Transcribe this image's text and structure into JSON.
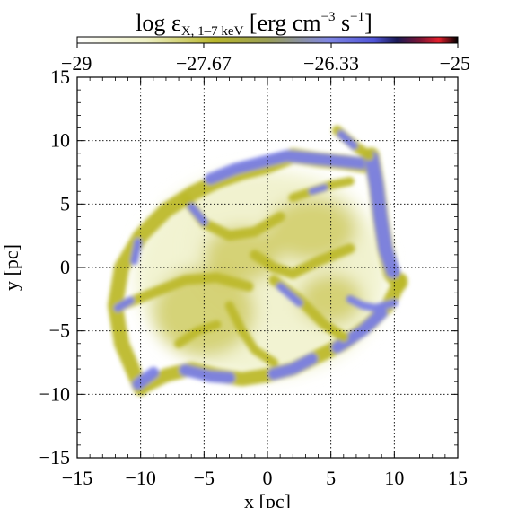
{
  "colorbar": {
    "label": "log εX, 1–7 keV [erg cm−3 s−1]",
    "label_main": "log ε",
    "label_sub": "X, 1–7 keV",
    "label_units_a": " [erg cm",
    "label_exp_a": "−3",
    "label_units_b": " s",
    "label_exp_b": "−1",
    "label_units_c": "]",
    "min": -29,
    "max": -25,
    "ticks": [
      "−29",
      "−27.67",
      "−26.33",
      "−25"
    ],
    "tick_values": [
      -29,
      -27.67,
      -26.33,
      -25
    ],
    "colormap": [
      {
        "v": 0.0,
        "c": "#ffffff"
      },
      {
        "v": 0.18,
        "c": "#eef0c4"
      },
      {
        "v": 0.36,
        "c": "#b8b62c"
      },
      {
        "v": 0.5,
        "c": "#9a9f55"
      },
      {
        "v": 0.66,
        "c": "#7f86e2"
      },
      {
        "v": 0.78,
        "c": "#5055d8"
      },
      {
        "v": 0.84,
        "c": "#1a1a55"
      },
      {
        "v": 0.9,
        "c": "#7a1535"
      },
      {
        "v": 0.95,
        "c": "#e4202c"
      },
      {
        "v": 1.0,
        "c": "#000000"
      }
    ]
  },
  "chart_data": {
    "type": "heatmap",
    "title": "",
    "xlabel": "x [pc]",
    "ylabel": "y [pc]",
    "xlim": [
      -15,
      15
    ],
    "ylim": [
      -15,
      15
    ],
    "xticks": [
      "−15",
      "−10",
      "−5",
      "0",
      "5",
      "10",
      "15"
    ],
    "yticks": [
      "15",
      "10",
      "5",
      "0",
      "−5",
      "−10",
      "−15"
    ],
    "xtick_values": [
      -15,
      -10,
      -5,
      0,
      5,
      10,
      15
    ],
    "ytick_values": [
      15,
      10,
      5,
      0,
      -5,
      -10,
      -15
    ],
    "grid": true,
    "colors": {
      "faint": "#f1f2d0",
      "mid": "#c9c450",
      "bright": "#bdb92c",
      "hot": "#7b80e6"
    },
    "emission_regions": {
      "diffuse_ellipses": [
        {
          "cx": -0.5,
          "cy": -0.5,
          "rx": 10.0,
          "ry": 8.2,
          "level": "faint"
        },
        {
          "cx": 1.0,
          "cy": 1.5,
          "rx": 7.5,
          "ry": 6.0,
          "level": "faint"
        },
        {
          "cx": -5.0,
          "cy": -3.5,
          "rx": 4.0,
          "ry": 3.5,
          "level": "mid"
        },
        {
          "cx": 3.5,
          "cy": 3.0,
          "rx": 3.5,
          "ry": 2.5,
          "level": "mid"
        },
        {
          "cx": -2.0,
          "cy": 1.0,
          "rx": 3.0,
          "ry": 2.2,
          "level": "mid"
        },
        {
          "cx": 5.0,
          "cy": -2.5,
          "rx": 2.5,
          "ry": 2.0,
          "level": "mid"
        }
      ],
      "filaments": [
        {
          "level": "bright",
          "width": 1.2,
          "points": [
            [
              -10,
              -9.5
            ],
            [
              -11.5,
              -6
            ],
            [
              -12,
              -3
            ],
            [
              -11.5,
              0
            ],
            [
              -10,
              2.5
            ],
            [
              -8,
              4.5
            ],
            [
              -6,
              5.8
            ],
            [
              -4,
              6.8
            ],
            [
              -2,
              7.5
            ],
            [
              0,
              8.0
            ],
            [
              2,
              8.8
            ],
            [
              4,
              8.5
            ],
            [
              6,
              8.3
            ],
            [
              8,
              8.0
            ]
          ]
        },
        {
          "level": "hot",
          "width": 0.9,
          "points": [
            [
              -4.5,
              7.0
            ],
            [
              -2.5,
              7.8
            ],
            [
              -0.5,
              8.3
            ],
            [
              1.5,
              8.8
            ],
            [
              3.5,
              8.6
            ],
            [
              5.5,
              8.4
            ],
            [
              7.5,
              8.2
            ]
          ]
        },
        {
          "level": "bright",
          "width": 1.1,
          "points": [
            [
              -10,
              -9.5
            ],
            [
              -8,
              -8.5
            ],
            [
              -6,
              -8.0
            ],
            [
              -4,
              -8.5
            ],
            [
              -2,
              -8.8
            ],
            [
              0,
              -8.5
            ],
            [
              2,
              -8.0
            ],
            [
              4,
              -7.0
            ],
            [
              6,
              -6.0
            ],
            [
              8,
              -4.5
            ],
            [
              9.5,
              -3.0
            ],
            [
              10.5,
              -1.0
            ]
          ]
        },
        {
          "level": "hot",
          "width": 0.9,
          "points": [
            [
              -10.2,
              -9.2
            ],
            [
              -9.0,
              -8.3
            ]
          ]
        },
        {
          "level": "hot",
          "width": 0.9,
          "points": [
            [
              -6.5,
              -8.1
            ],
            [
              -4.5,
              -8.6
            ],
            [
              -3.0,
              -8.7
            ]
          ]
        },
        {
          "level": "hot",
          "width": 0.9,
          "points": [
            [
              0.5,
              -8.4
            ],
            [
              2.0,
              -8.0
            ],
            [
              3.5,
              -7.2
            ]
          ]
        },
        {
          "level": "hot",
          "width": 0.9,
          "points": [
            [
              5.5,
              -6.3
            ],
            [
              7.5,
              -5.0
            ],
            [
              9.0,
              -3.6
            ]
          ]
        },
        {
          "level": "bright",
          "width": 1.3,
          "points": [
            [
              8.2,
              8.8
            ],
            [
              8.6,
              6.5
            ],
            [
              8.9,
              4.0
            ],
            [
              9.3,
              1.5
            ],
            [
              9.8,
              -0.5
            ],
            [
              10.4,
              -1.2
            ]
          ]
        },
        {
          "level": "hot",
          "width": 1.1,
          "points": [
            [
              8.2,
              8.6
            ],
            [
              8.6,
              6.5
            ],
            [
              8.9,
              4.0
            ],
            [
              9.3,
              1.5
            ],
            [
              9.9,
              -0.3
            ]
          ]
        },
        {
          "level": "bright",
          "width": 0.8,
          "points": [
            [
              5.5,
              10.8
            ],
            [
              7.0,
              9.5
            ],
            [
              8.0,
              8.8
            ]
          ]
        },
        {
          "level": "hot",
          "width": 0.6,
          "points": [
            [
              5.8,
              10.5
            ],
            [
              6.8,
              9.6
            ]
          ]
        },
        {
          "level": "bright",
          "width": 0.8,
          "points": [
            [
              -6.5,
              5.5
            ],
            [
              -5.0,
              3.5
            ],
            [
              -3.0,
              2.5
            ],
            [
              -1.0,
              2.8
            ],
            [
              1.0,
              4.0
            ]
          ]
        },
        {
          "level": "hot",
          "width": 0.6,
          "points": [
            [
              -6.0,
              4.8
            ],
            [
              -5.0,
              3.6
            ]
          ]
        },
        {
          "level": "bright",
          "width": 0.8,
          "points": [
            [
              -11.5,
              -3.0
            ],
            [
              -9.0,
              -2.0
            ],
            [
              -6.5,
              -1.0
            ],
            [
              -4.0,
              -0.8
            ],
            [
              -1.5,
              -1.5
            ]
          ]
        },
        {
          "level": "hot",
          "width": 0.6,
          "points": [
            [
              -11.8,
              -3.2
            ],
            [
              -10.8,
              -2.6
            ]
          ]
        },
        {
          "level": "bright",
          "width": 0.8,
          "points": [
            [
              0.5,
              -1.0
            ],
            [
              2.5,
              -2.5
            ],
            [
              4.5,
              -4.5
            ],
            [
              6.0,
              -5.5
            ]
          ]
        },
        {
          "level": "hot",
          "width": 0.6,
          "points": [
            [
              1.0,
              -1.5
            ],
            [
              2.5,
              -2.8
            ]
          ]
        },
        {
          "level": "bright",
          "width": 0.8,
          "points": [
            [
              -1.0,
              1.0
            ],
            [
              0.5,
              0.0
            ],
            [
              2.0,
              -0.5
            ],
            [
              4.0,
              0.5
            ],
            [
              6.5,
              1.5
            ]
          ]
        },
        {
          "level": "bright",
          "width": 0.7,
          "points": [
            [
              -3.0,
              -3.0
            ],
            [
              -2.0,
              -5.0
            ],
            [
              -1.0,
              -6.5
            ],
            [
              0.5,
              -7.5
            ]
          ]
        },
        {
          "level": "hot",
          "width": 0.6,
          "points": [
            [
              6.5,
              -2.5
            ],
            [
              7.5,
              -3.0
            ],
            [
              8.5,
              -3.2
            ],
            [
              10.0,
              -2.8
            ]
          ]
        },
        {
          "level": "bright",
          "width": 0.7,
          "points": [
            [
              -7.0,
              -6.0
            ],
            [
              -5.5,
              -5.0
            ],
            [
              -4.0,
              -4.5
            ]
          ]
        },
        {
          "level": "hot",
          "width": 0.6,
          "points": [
            [
              -10.5,
              0.5
            ],
            [
              -10.2,
              2.0
            ]
          ]
        },
        {
          "level": "bright",
          "width": 0.7,
          "points": [
            [
              2.0,
              5.5
            ],
            [
              3.5,
              6.0
            ],
            [
              5.0,
              6.5
            ],
            [
              6.5,
              6.8
            ]
          ]
        },
        {
          "level": "hot",
          "width": 0.5,
          "points": [
            [
              3.5,
              6.0
            ],
            [
              4.5,
              6.3
            ]
          ]
        }
      ]
    }
  }
}
